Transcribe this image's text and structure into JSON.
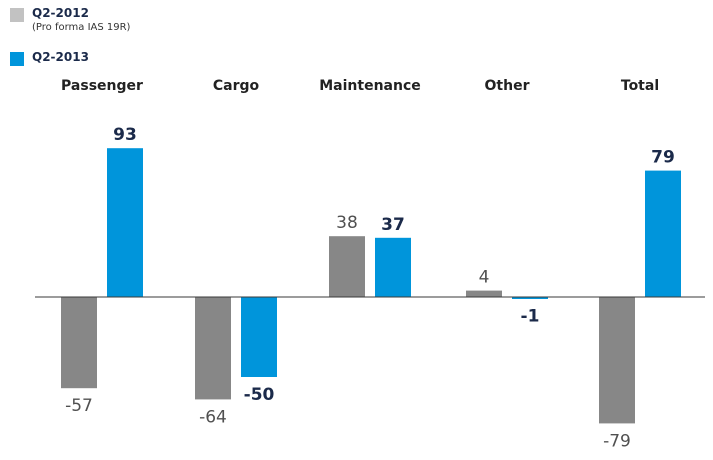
{
  "colors": {
    "q2_2012": "#878787",
    "q2_2013": "#0095db",
    "baseline": "#3a3a3a",
    "old_label": "#505050",
    "new_label": "#1b2a4a",
    "category_label": "#222222"
  },
  "legend": {
    "items": [
      {
        "label": "Q2-2012",
        "note": "(Pro forma IAS 19R)"
      },
      {
        "label": "Q2-2013",
        "note": ""
      }
    ]
  },
  "chart_data": {
    "type": "bar",
    "categories": [
      "Passenger",
      "Cargo",
      "Maintenance",
      "Other",
      "Total"
    ],
    "series": [
      {
        "name": "Q2-2012",
        "values": [
          -57,
          -64,
          38,
          4,
          -79
        ],
        "labels": [
          "-57",
          "-64",
          "38",
          "4",
          "-79"
        ]
      },
      {
        "name": "Q2-2013",
        "values": [
          93,
          -50,
          37,
          -1,
          79
        ],
        "labels": [
          "93",
          "-50",
          "37",
          "-1",
          "79"
        ]
      }
    ],
    "legend_placement": "top-left",
    "grid": false
  }
}
